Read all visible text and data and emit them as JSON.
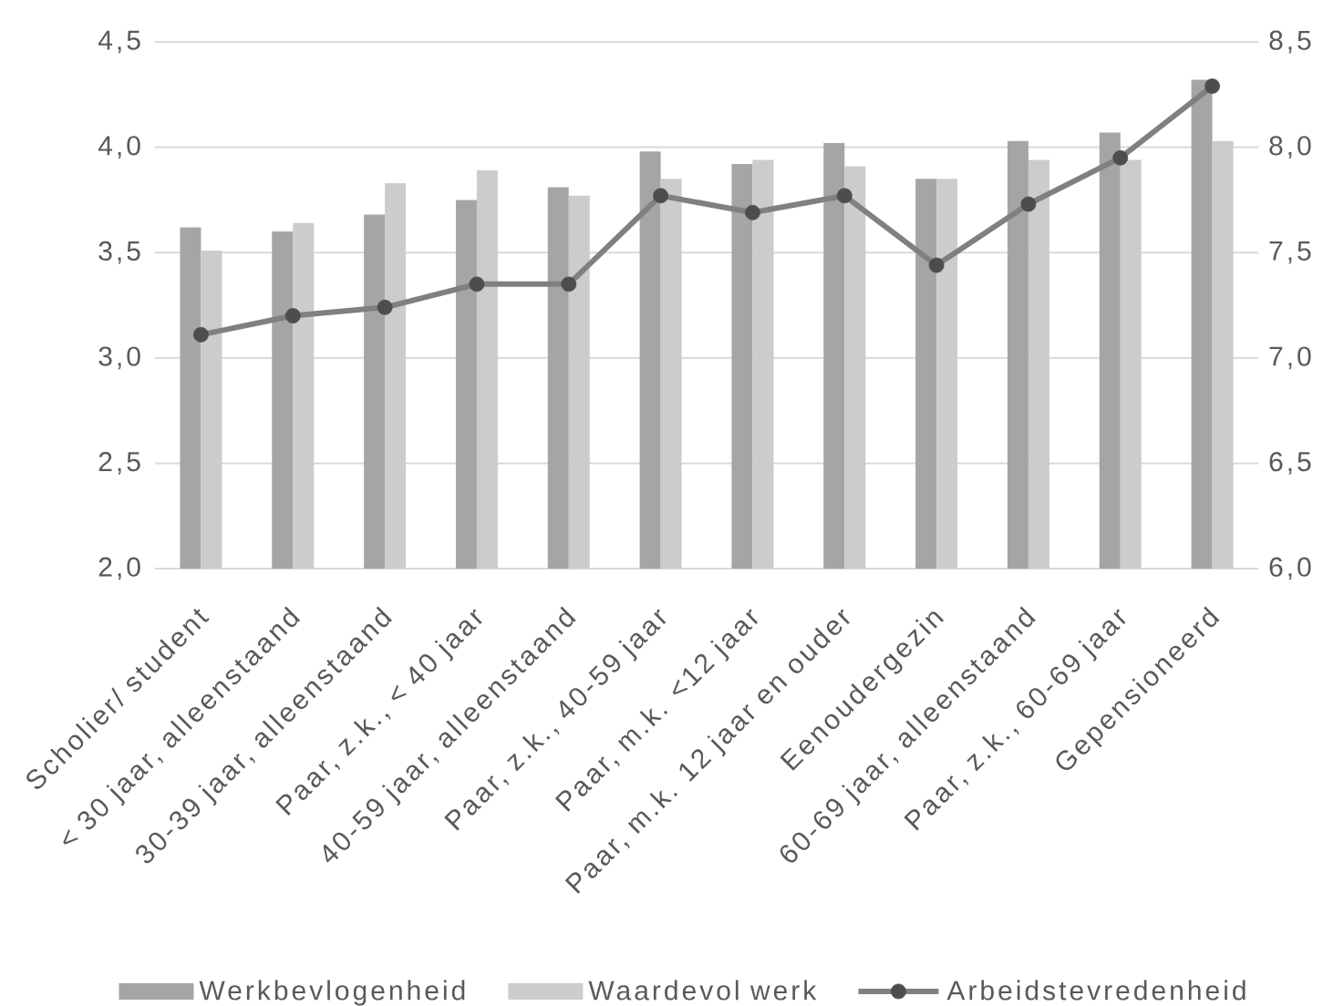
{
  "chart_data": {
    "type": "bar",
    "categories": [
      "Scholier/ student",
      "< 30 jaar, alleenstaand",
      "30-39 jaar, alleenstaand",
      "Paar, z.k., < 40 jaar",
      "40-59 jaar, alleenstaand",
      "Paar, z.k., 40-59 jaar",
      "Paar, m.k. <12 jaar",
      "Paar, m.k. 12 jaar en ouder",
      "Eenoudergezin",
      "60-69 jaar, alleenstaand",
      "Paar, z.k., 60-69 jaar",
      "Gepensioneerd"
    ],
    "series": [
      {
        "name": "Werkbevlogenheid",
        "color": "#a5a5a5",
        "values": [
          3.62,
          3.6,
          3.68,
          3.75,
          3.81,
          3.98,
          3.92,
          4.02,
          3.85,
          4.03,
          4.07,
          4.32
        ]
      },
      {
        "name": "Waardevol werk",
        "color": "#cccccc",
        "values": [
          3.51,
          3.64,
          3.83,
          3.89,
          3.77,
          3.85,
          3.94,
          3.91,
          3.85,
          3.94,
          3.94,
          4.03
        ]
      },
      {
        "name": "Arbeidstevredenheid",
        "type": "line",
        "axis": "y2",
        "color": "#808080",
        "values": [
          7.11,
          7.2,
          7.24,
          7.35,
          7.35,
          7.77,
          7.69,
          7.77,
          7.44,
          7.73,
          7.95,
          8.29
        ]
      }
    ],
    "ylim": [
      2.0,
      4.5
    ],
    "yticks": [
      {
        "value": 2.0,
        "label": "2,0"
      },
      {
        "value": 2.5,
        "label": "2,5"
      },
      {
        "value": 3.0,
        "label": "3,0"
      },
      {
        "value": 3.5,
        "label": "3,5"
      },
      {
        "value": 4.0,
        "label": "4,0"
      },
      {
        "value": 4.5,
        "label": "4,5"
      }
    ],
    "y2lim": [
      6.0,
      8.5
    ],
    "y2ticks": [
      {
        "value": 6.0,
        "label": "6,0"
      },
      {
        "value": 6.5,
        "label": "6,5"
      },
      {
        "value": 7.0,
        "label": "7,0"
      },
      {
        "value": 7.5,
        "label": "7,5"
      },
      {
        "value": 8.0,
        "label": "8,0"
      },
      {
        "value": 8.5,
        "label": "8,5"
      }
    ],
    "grid": "y",
    "legend": "bottom",
    "marker": "circle"
  }
}
